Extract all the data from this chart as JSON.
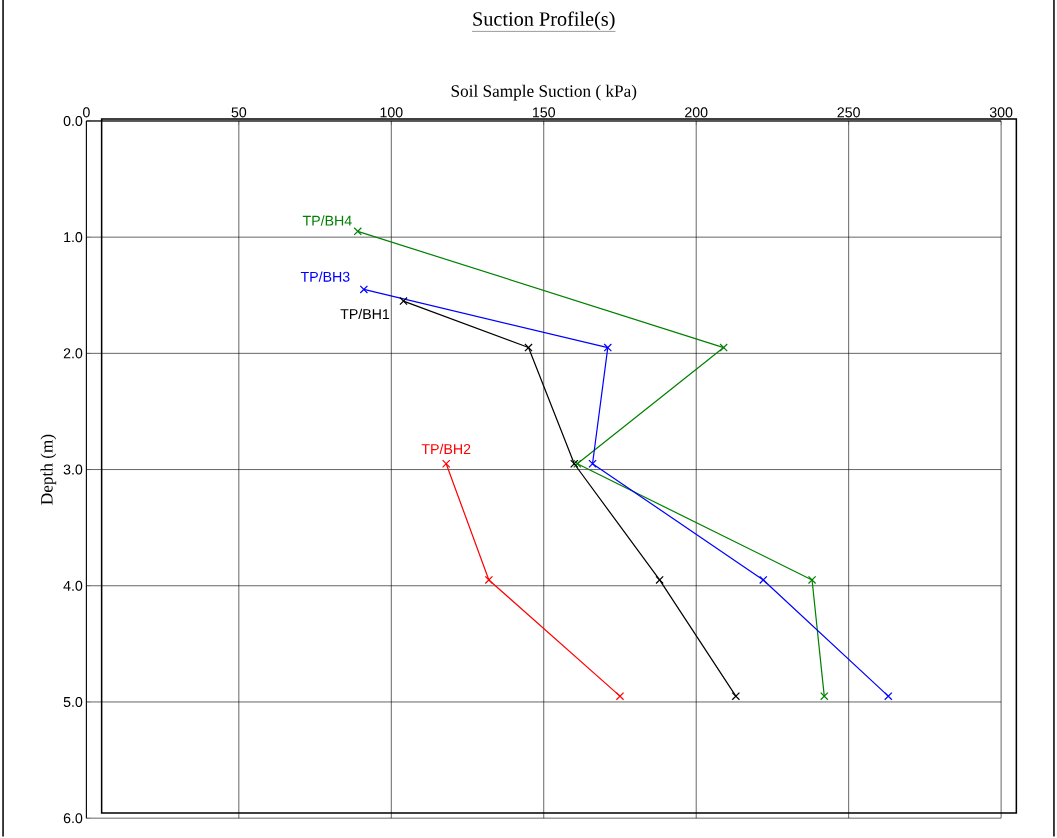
{
  "chart_data": {
    "type": "line",
    "title": "Suction Profile(s)",
    "xlabel": "Soil Sample Suction ( kPa)",
    "ylabel": "Depth (m)",
    "xlim": [
      0,
      300
    ],
    "xticks": [
      0,
      50,
      100,
      150,
      200,
      250,
      300
    ],
    "ylim": [
      6,
      0
    ],
    "yticks": [
      {
        "value": 0,
        "label": "0.0"
      },
      {
        "value": 1,
        "label": "1.0"
      },
      {
        "value": 2,
        "label": "2.0"
      },
      {
        "value": 3,
        "label": "3.0"
      },
      {
        "value": 4,
        "label": "4.0"
      },
      {
        "value": 5,
        "label": "5.0"
      },
      {
        "value": 6,
        "label": "6.0"
      }
    ],
    "grid": true,
    "marker": "cross",
    "series": [
      {
        "name": "TP/BH4",
        "color": "#008000",
        "x": [
          89,
          209,
          161,
          238,
          242
        ],
        "values": [
          0.95,
          1.95,
          2.95,
          3.95,
          4.95
        ]
      },
      {
        "name": "TP/BH3",
        "color": "#0000ff",
        "x": [
          91,
          171,
          166,
          222,
          263
        ],
        "values": [
          1.45,
          1.95,
          2.95,
          3.95,
          4.95
        ]
      },
      {
        "name": "TP/BH1",
        "color": "#000000",
        "x": [
          104,
          145,
          160,
          188,
          213
        ],
        "values": [
          1.55,
          1.95,
          2.95,
          3.95,
          4.95
        ]
      },
      {
        "name": "TP/BH2",
        "color": "#ff0000",
        "x": [
          118,
          132,
          175
        ],
        "values": [
          2.95,
          3.95,
          4.95
        ]
      }
    ]
  }
}
